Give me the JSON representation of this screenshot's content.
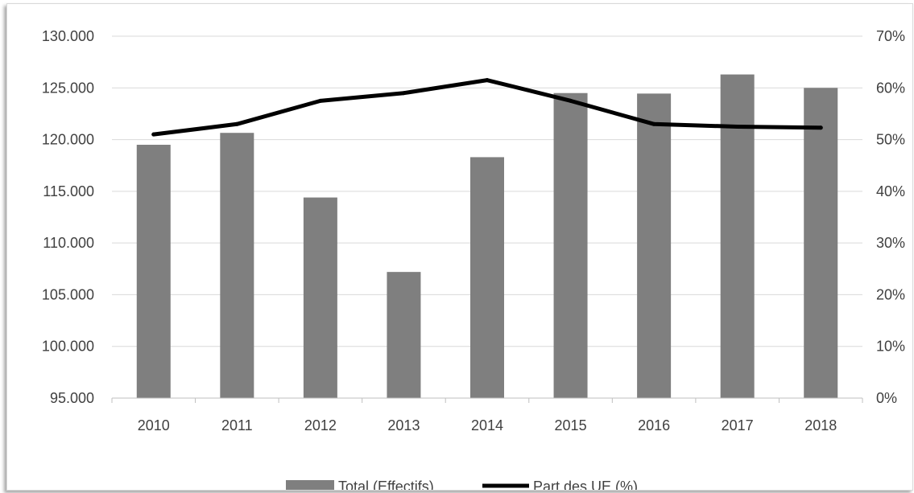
{
  "chart_data": {
    "type": "bar",
    "categories": [
      "2010",
      "2011",
      "2012",
      "2013",
      "2014",
      "2015",
      "2016",
      "2017",
      "2018"
    ],
    "series": [
      {
        "name": "Total (Effectifs)",
        "type": "bar",
        "axis": "left",
        "values": [
          119500,
          120650,
          114400,
          107200,
          118300,
          124500,
          124450,
          126300,
          125000
        ]
      },
      {
        "name": "Part des UE (%)",
        "type": "line",
        "axis": "right",
        "values": [
          51,
          53,
          57.5,
          59,
          61.5,
          57.5,
          53,
          52.5,
          52.3
        ]
      }
    ],
    "y_left": {
      "ylim": [
        95000,
        130000
      ],
      "ticks": [
        95000,
        100000,
        105000,
        110000,
        115000,
        120000,
        125000,
        130000
      ],
      "tick_labels": [
        "95.000",
        "100.000",
        "105.000",
        "110.000",
        "115.000",
        "120.000",
        "125.000",
        "130.000"
      ]
    },
    "y_right": {
      "ylim": [
        0,
        70
      ],
      "ticks": [
        0,
        10,
        20,
        30,
        40,
        50,
        60,
        70
      ],
      "tick_labels": [
        "0%",
        "10%",
        "20%",
        "30%",
        "40%",
        "50%",
        "60%",
        "70%"
      ]
    },
    "grid": true,
    "legend_position": "bottom",
    "title": "",
    "xlabel": "",
    "ylabel": ""
  },
  "colors": {
    "bar": "#7f7f7f",
    "line": "#000000",
    "grid": "#d9d9d9",
    "axis": "#bfbfbf",
    "text": "#404040"
  },
  "legend": {
    "bar_label": "Total (Effectifs)",
    "line_label": "Part des UE (%)"
  }
}
